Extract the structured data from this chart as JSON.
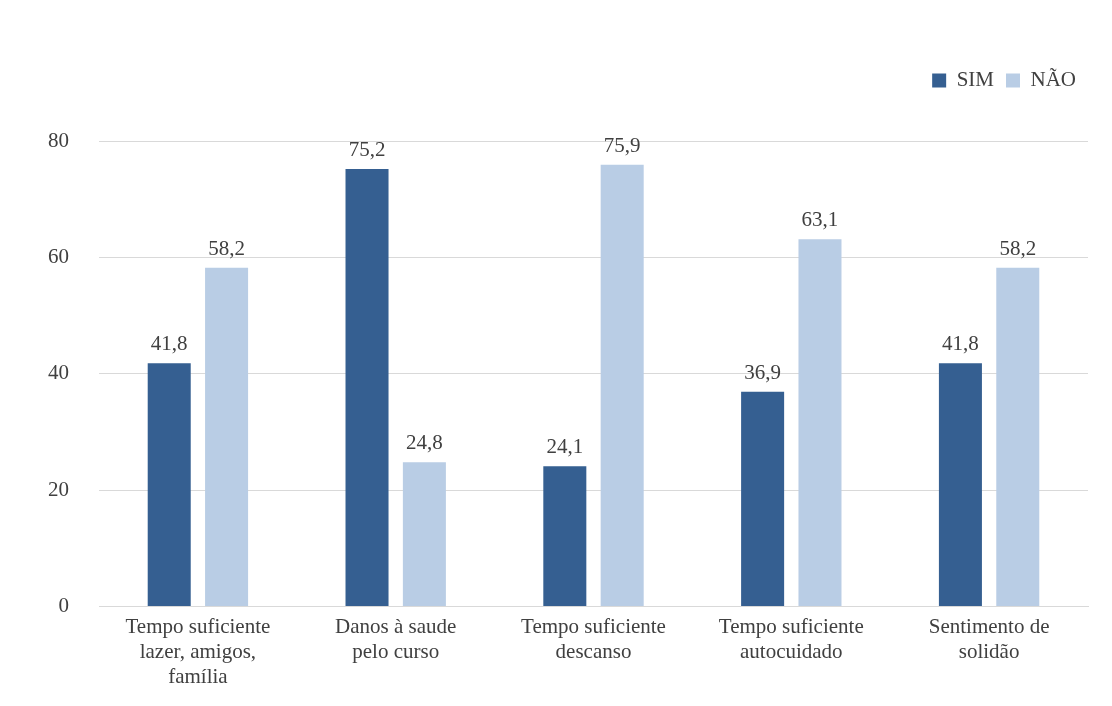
{
  "chart_data": {
    "type": "bar",
    "categories": [
      "Tempo suficiente\nlazer, amigos,\nfamília",
      "Danos à saude\npelo curso",
      "Tempo suficiente\ndescanso",
      "Tempo suficiente\nautocuidado",
      "Sentimento de\nsolidão"
    ],
    "series": [
      {
        "name": "SIM",
        "color": "#355f91",
        "values": [
          41.8,
          75.2,
          24.1,
          36.9,
          41.8
        ],
        "value_labels": [
          "41,8",
          "75,2",
          "24,1",
          "36,9",
          "41,8"
        ]
      },
      {
        "name": "NÃO",
        "color": "#b9cde5",
        "values": [
          58.2,
          24.8,
          75.9,
          63.1,
          58.2
        ],
        "value_labels": [
          "58,2",
          "24,8",
          "75,9",
          "63,1",
          "58,2"
        ]
      }
    ],
    "ylim": [
      0,
      80
    ],
    "yticks": [
      0,
      20,
      40,
      60,
      80
    ],
    "grid": "y",
    "legend": "top right"
  }
}
